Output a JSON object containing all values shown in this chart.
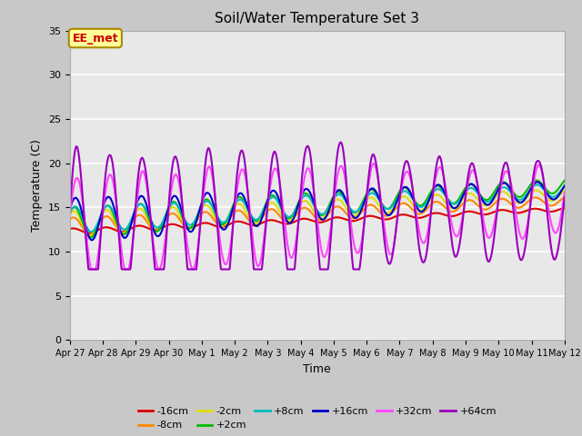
{
  "title": "Soil/Water Temperature Set 3",
  "xlabel": "Time",
  "ylabel": "Temperature (C)",
  "xlim": [
    0,
    15
  ],
  "ylim": [
    0,
    35
  ],
  "yticks": [
    0,
    5,
    10,
    15,
    20,
    25,
    30,
    35
  ],
  "xtick_labels": [
    "Apr 27",
    "Apr 28",
    "Apr 29",
    "Apr 30",
    "May 1",
    "May 2",
    "May 3",
    "May 4",
    "May 5",
    "May 6",
    "May 7",
    "May 8",
    "May 9",
    "May 10",
    "May 11",
    "May 12"
  ],
  "bg_outer": "#c8c8c8",
  "bg_inner": "#e8e8e8",
  "annotation_text": "EE_met",
  "annotation_color": "#cc0000",
  "annotation_bg": "#ffff99",
  "annotation_border": "#aa8800",
  "series_order": [
    "-16cm",
    "-8cm",
    "-2cm",
    "+2cm",
    "+8cm",
    "+16cm",
    "+32cm",
    "+64cm"
  ],
  "series": {
    "-16cm": {
      "color": "#dd0000",
      "lw": 1.5
    },
    "-8cm": {
      "color": "#ff8800",
      "lw": 1.5
    },
    "-2cm": {
      "color": "#dddd00",
      "lw": 1.5
    },
    "+2cm": {
      "color": "#00bb00",
      "lw": 1.5
    },
    "+8cm": {
      "color": "#00bbbb",
      "lw": 1.5
    },
    "+16cm": {
      "color": "#0000cc",
      "lw": 1.5
    },
    "+32cm": {
      "color": "#ff44ff",
      "lw": 1.5
    },
    "+64cm": {
      "color": "#9900bb",
      "lw": 1.5
    }
  },
  "legend_ncol": 6
}
